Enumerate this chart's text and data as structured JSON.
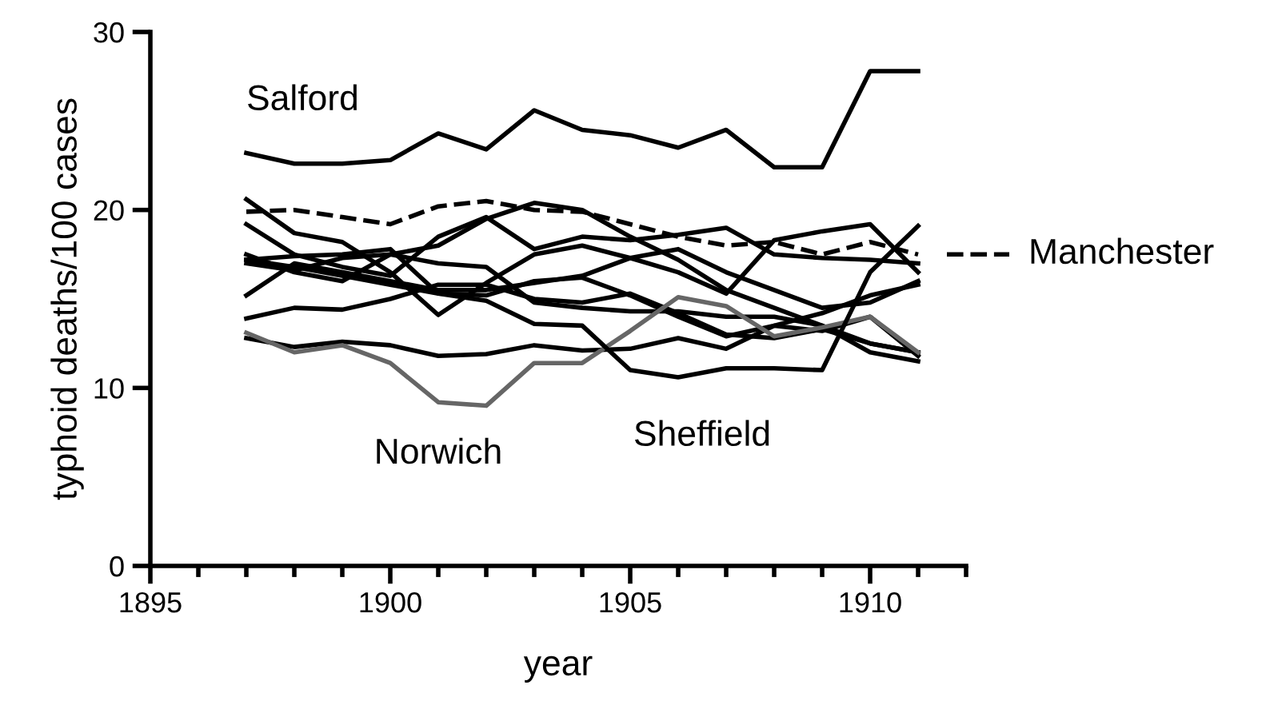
{
  "chart_data": {
    "type": "line",
    "xlabel": "year",
    "ylabel": "typhoid deaths/100 cases",
    "x": [
      1897,
      1898,
      1899,
      1900,
      1901,
      1902,
      1903,
      1904,
      1905,
      1906,
      1907,
      1908,
      1909,
      1910,
      1911
    ],
    "xlim": [
      1895,
      1912
    ],
    "ylim": [
      0,
      30
    ],
    "xticks": [
      1895,
      {
        "value": 1896,
        "label": null
      },
      {
        "value": 1897,
        "label": null
      },
      {
        "value": 1898,
        "label": null
      },
      {
        "value": 1899,
        "label": null
      },
      1900,
      {
        "value": 1901,
        "label": null
      },
      {
        "value": 1902,
        "label": null
      },
      {
        "value": 1903,
        "label": null
      },
      {
        "value": 1904,
        "label": null
      },
      1905,
      {
        "value": 1906,
        "label": null
      },
      {
        "value": 1907,
        "label": null
      },
      {
        "value": 1908,
        "label": null
      },
      {
        "value": 1909,
        "label": null
      },
      1910,
      {
        "value": 1911,
        "label": null
      },
      {
        "value": 1912,
        "label": null
      }
    ],
    "yticks": [
      0,
      10,
      20,
      30
    ],
    "grid": false,
    "marker": "none",
    "line_style": "solid",
    "series": [
      {
        "color": "#000000",
        "values": [
          20.6,
          18.7,
          18.2,
          16.5,
          14.1,
          15.9,
          17.5,
          18.0,
          17.3,
          16.5,
          15.3,
          18.3,
          18.8,
          19.2,
          16.5
        ]
      },
      {
        "color": "#000000",
        "values": [
          19.2,
          17.5,
          16.8,
          16.3,
          18.5,
          19.6,
          17.8,
          18.5,
          18.3,
          18.6,
          19.0,
          17.5,
          17.3,
          17.2,
          17.0
        ]
      },
      {
        "color": "#000000",
        "values": [
          17.5,
          16.5,
          16.0,
          17.5,
          18.0,
          19.5,
          20.4,
          20.0,
          18.5,
          17.2,
          15.5,
          14.5,
          13.5,
          12.0,
          11.5
        ]
      },
      {
        "color": "#000000",
        "values": [
          15.2,
          17.0,
          16.5,
          16.0,
          15.5,
          15.5,
          15.9,
          16.3,
          17.3,
          17.8,
          16.5,
          15.5,
          14.5,
          14.8,
          16.0
        ]
      },
      {
        "color": "#000000",
        "values": [
          17.2,
          17.4,
          17.5,
          17.8,
          15.3,
          15.2,
          16.0,
          16.2,
          15.2,
          14.0,
          12.9,
          13.5,
          14.2,
          15.2,
          15.8
        ]
      },
      {
        "color": "#000000",
        "values": [
          13.9,
          14.5,
          14.4,
          15.0,
          15.8,
          15.8,
          15.0,
          14.8,
          15.3,
          14.2,
          13.0,
          12.8,
          13.3,
          12.5,
          12.0
        ]
      },
      {
        "color": "#000000",
        "values": [
          12.8,
          12.3,
          12.6,
          12.4,
          11.8,
          11.9,
          12.4,
          12.1,
          12.2,
          12.8,
          12.2,
          13.5,
          13.2,
          14.0,
          11.8
        ]
      },
      {
        "color": "#000000",
        "values": [
          17.0,
          16.6,
          17.3,
          17.5,
          17.0,
          16.8,
          14.8,
          14.5,
          14.3,
          14.3,
          14.0,
          14.0,
          13.5,
          12.5,
          12.0
        ]
      },
      {
        "name": "Salford",
        "color": "#000000",
        "values": [
          23.2,
          22.6,
          22.6,
          22.8,
          24.3,
          23.4,
          25.6,
          24.5,
          24.2,
          23.5,
          24.5,
          22.4,
          22.4,
          27.8,
          27.8
        ]
      },
      {
        "name": "Manchester",
        "color": "#000000",
        "line_style": "dashed",
        "values": [
          19.9,
          20.0,
          19.6,
          19.2,
          20.2,
          20.5,
          20.0,
          19.9,
          19.2,
          18.5,
          18.0,
          18.2,
          17.5,
          18.2,
          17.5
        ]
      },
      {
        "name": "Norwich",
        "color": "#666666",
        "values": [
          13.1,
          12.0,
          12.4,
          11.4,
          9.2,
          9.0,
          11.4,
          11.4,
          13.2,
          15.1,
          14.6,
          12.9,
          13.4,
          14.0,
          12.0
        ]
      },
      {
        "name": "Sheffield",
        "color": "#000000",
        "values": [
          17.2,
          16.8,
          16.3,
          15.8,
          15.3,
          14.9,
          13.6,
          13.5,
          11.0,
          10.6,
          11.1,
          11.1,
          11.0,
          16.5,
          19.1
        ]
      }
    ]
  }
}
